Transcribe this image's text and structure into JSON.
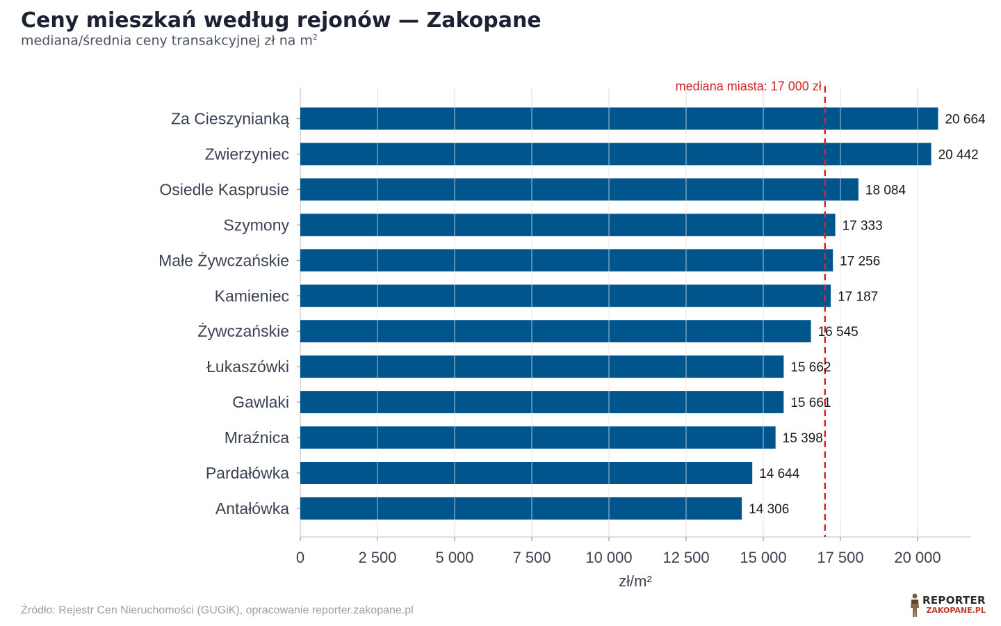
{
  "header": {
    "title": "Ceny mieszkań według rejonów — Zakopane",
    "subtitle_main": "mediana/średnia ceny transakcyjnej zł na m",
    "subtitle_sup": "2"
  },
  "footer": {
    "source": "Źródło: Rejestr Cen Nieruchomości (GUGiK), opracowanie reporter.zakopane.pl",
    "logo_top": "REPORTER",
    "logo_bottom": "ZAKOPANE.PL"
  },
  "chart_data": {
    "type": "bar",
    "orientation": "horizontal",
    "categories": [
      "Za Cieszynianką",
      "Zwierzyniec",
      "Osiedle Kasprusie",
      "Szymony",
      "Małe Żywczańskie",
      "Kamieniec",
      "Żywczańskie",
      "Łukaszówki",
      "Gawlaki",
      "Mraźnica",
      "Pardałówka",
      "Antałówka"
    ],
    "values": [
      20664,
      20442,
      18084,
      17333,
      17256,
      17187,
      16545,
      15662,
      15661,
      15398,
      14644,
      14306
    ],
    "value_labels": [
      "20 664",
      "20 442",
      "18 084",
      "17 333",
      "17 256",
      "17 187",
      "16 545",
      "15 662",
      "15 661",
      "15 398",
      "14 644",
      "14 306"
    ],
    "xlabel": "zł/m²",
    "xlim": [
      0,
      21700
    ],
    "xticks": [
      0,
      2500,
      5000,
      7500,
      10000,
      12500,
      15000,
      17500,
      20000
    ],
    "xtick_labels": [
      "0",
      "2 500",
      "5 000",
      "7 500",
      "10 000",
      "12 500",
      "15 000",
      "17 500",
      "20 000"
    ],
    "reference_line": {
      "value": 17000,
      "label": "mediana miasta: 17 000 zł",
      "color": "#d62728",
      "style": "dashed"
    },
    "bar_color": "#00558c",
    "grid": "vertical",
    "legend": "none"
  }
}
